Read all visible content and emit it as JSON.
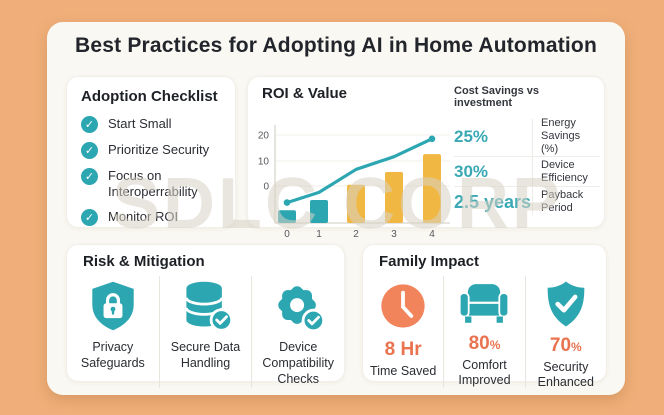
{
  "colors": {
    "background": "#F0AF7A",
    "card": "#FAF8F2",
    "panel": "#FFFFFF",
    "teal": "#2CA6B1",
    "yellow": "#F0B843",
    "orange": "#E9734F",
    "clock_orange": "#F2845C",
    "text_dark": "#22252B",
    "divider": "#E9E6E0",
    "watermark": "#D8D2C6"
  },
  "icons": {
    "check": "✓"
  },
  "title": "Best Practices for Adopting AI in Home Automation",
  "watermark": "SDLC CORP",
  "checklist": {
    "title": "Adoption Checklist",
    "items": [
      "Start Small",
      "Prioritize Security",
      "Focus on Interoperrability",
      "Monitor ROI"
    ]
  },
  "roi": {
    "title": "ROI & Value",
    "stats_header": "Cost Savings vs investment",
    "stats": [
      {
        "value": "25%",
        "label": "Energy Savings (%)"
      },
      {
        "value": "30%",
        "label": "Device Efficiency"
      },
      {
        "value": "2.5 years",
        "label": "Payback Period"
      }
    ]
  },
  "chart_data": {
    "type": "bar",
    "title": "ROI & Value",
    "categories": [
      "0",
      "1",
      "2",
      "3",
      "4"
    ],
    "yticks": [
      0,
      10,
      20
    ],
    "ylim": [
      0,
      20
    ],
    "grid": true,
    "legend": "none",
    "series": [
      {
        "name": "value-bars",
        "type": "bar",
        "values": [
          5,
          9,
          15,
          20,
          27
        ],
        "colors": [
          "teal",
          "teal",
          "yellow",
          "yellow",
          "yellow"
        ]
      },
      {
        "name": "roi-trend",
        "type": "line",
        "values": [
          8,
          12,
          21,
          26,
          33
        ],
        "color": "teal"
      }
    ]
  },
  "risk": {
    "title": "Risk & Mitigation",
    "items": [
      {
        "icon": "lock-shield-icon",
        "label": "Privacy Safeguards"
      },
      {
        "icon": "database-check-icon",
        "label": "Secure Data Handling"
      },
      {
        "icon": "gear-check-icon",
        "label": "Device Compatibility Checks"
      }
    ]
  },
  "family": {
    "title": "Family Impact",
    "items": [
      {
        "icon": "clock-icon",
        "value": "8 Hr",
        "suffix": "",
        "label": "Time Saved"
      },
      {
        "icon": "sofa-icon",
        "value": "80",
        "suffix": "%",
        "label": "Comfort Improved"
      },
      {
        "icon": "shield-check-icon",
        "value": "70",
        "suffix": "%",
        "label": "Security Enhanced"
      }
    ]
  }
}
